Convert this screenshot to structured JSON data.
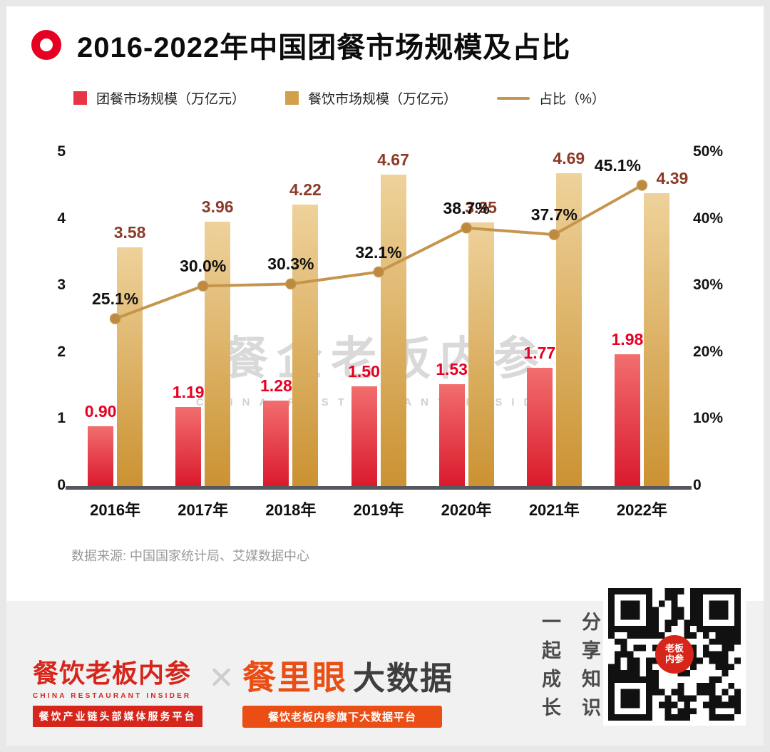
{
  "header": {
    "title": "2016-2022年中国团餐市场规模及占比"
  },
  "chart_data": {
    "type": "bar",
    "categories": [
      "2016年",
      "2017年",
      "2018年",
      "2019年",
      "2020年",
      "2021年",
      "2022年"
    ],
    "series": [
      {
        "name": "团餐市场规模（万亿元）",
        "type": "bar",
        "axis": "left",
        "values": [
          0.9,
          1.19,
          1.28,
          1.5,
          1.53,
          1.77,
          1.98
        ],
        "labels": [
          "0.90",
          "1.19",
          "1.28",
          "1.50",
          "1.53",
          "1.77",
          "1.98"
        ],
        "color_top": "#f26e6e",
        "color_bottom": "#da1a2c",
        "legend_color": "#e73446",
        "label_color": "#e60021"
      },
      {
        "name": "餐饮市场规模（万亿元）",
        "type": "bar",
        "axis": "left",
        "values": [
          3.58,
          3.96,
          4.22,
          4.67,
          3.95,
          4.69,
          4.39
        ],
        "labels": [
          "3.58",
          "3.96",
          "4.22",
          "4.67",
          "3.95",
          "4.69",
          "4.39"
        ],
        "color_top": "#eed29b",
        "color_bottom": "#cb9232",
        "legend_color": "#d2a04a",
        "label_color": "#8d3a28"
      },
      {
        "name": "占比（%）",
        "type": "line",
        "axis": "right",
        "values": [
          25.1,
          30.0,
          30.3,
          32.1,
          38.7,
          37.7,
          45.1
        ],
        "labels": [
          "25.1%",
          "30.0%",
          "30.3%",
          "32.1%",
          "38.7%",
          "37.7%",
          "45.1%"
        ],
        "color": "#c6954d",
        "marker_color": "#bd8a3f",
        "label_color": "#111111"
      }
    ],
    "left_axis": {
      "min": 0,
      "max": 5,
      "ticks": [
        "5",
        "4",
        "3",
        "2",
        "1",
        "0"
      ]
    },
    "right_axis": {
      "min": 0,
      "max": 50,
      "ticks": [
        "50%",
        "40%",
        "30%",
        "20%",
        "10%",
        "0"
      ]
    },
    "grid": false,
    "legend_position": "top-left"
  },
  "watermark": {
    "line1": "餐企老板内参",
    "line2": "CHINA RESTAURANT INSIDER"
  },
  "source_note": "数据来源: 中国国家统计局、艾媒数据中心",
  "footer": {
    "brand_name": "餐饮老板内参",
    "brand_sub": "CHINA RESTAURANT INSIDER",
    "brand_tagline": "餐饮产业链头部媒体服务平台",
    "separator": "✕",
    "product_name": "餐里眼",
    "product_suffix": "大数据",
    "product_tagline": "餐饮老板内参旗下大数据平台",
    "slogan_left": "一起成长",
    "slogan_right": "分享知识",
    "qr_center_label": "老板内参"
  }
}
